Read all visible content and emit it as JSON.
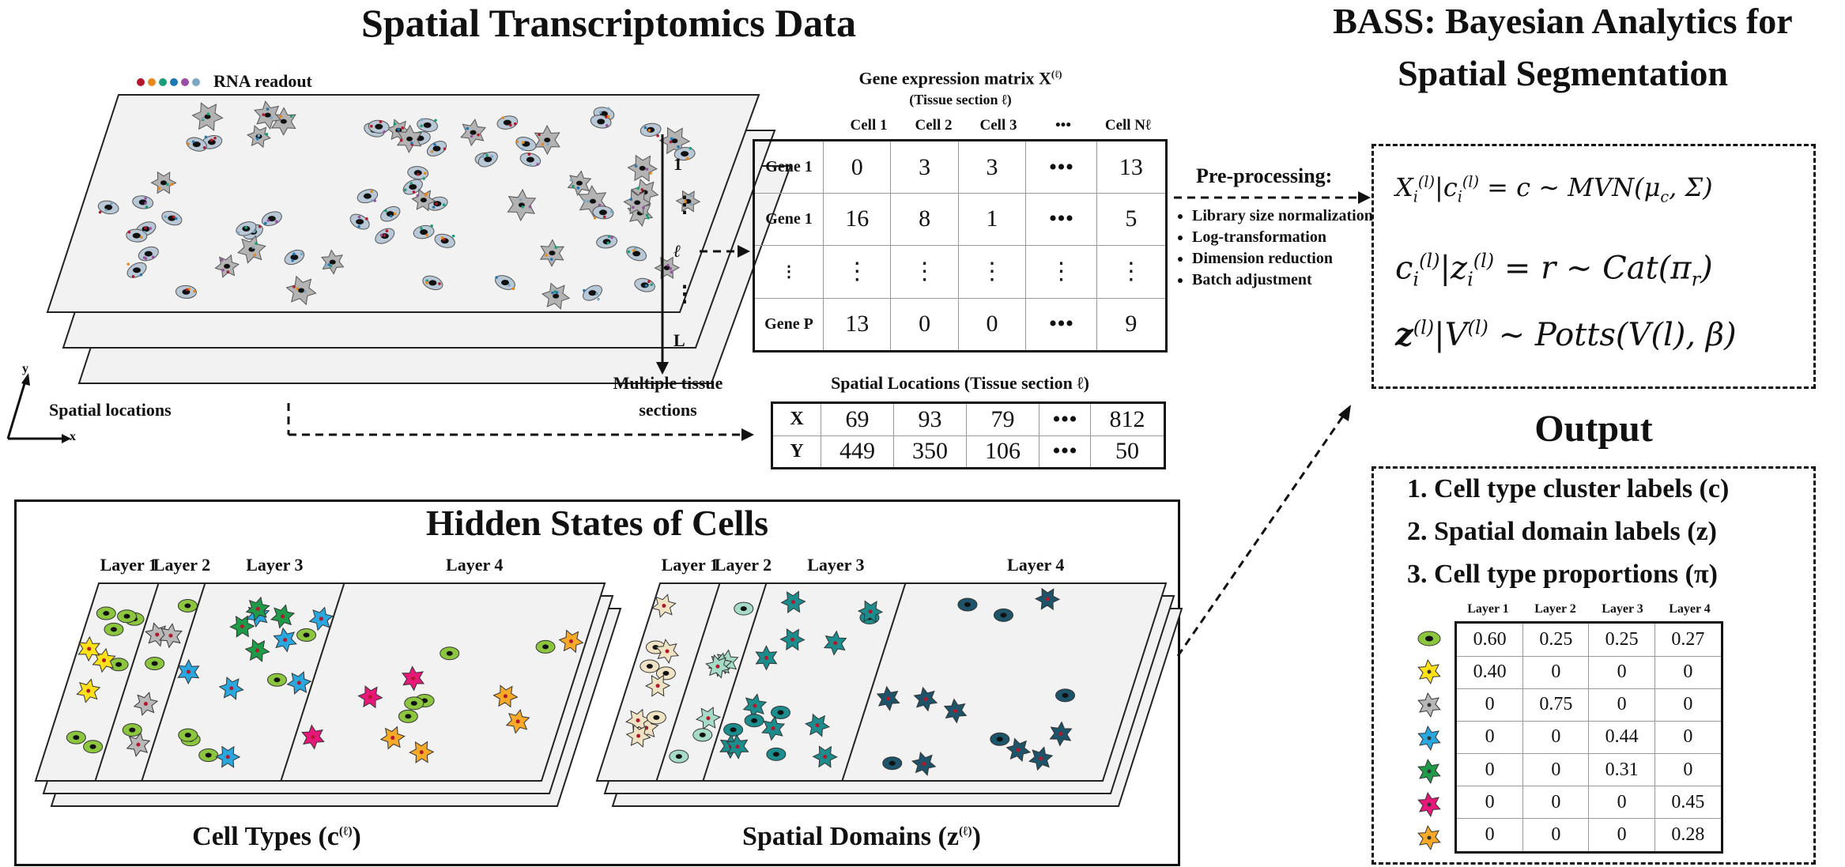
{
  "left_title": "Spatial Transcriptomics Data",
  "right_title_line1": "BASS: Bayesian Analytics for",
  "right_title_line2": "Spatial Segmentation",
  "rna_readout_label": "RNA readout",
  "rna_dot_colors": [
    "#b2182b",
    "#e6891c",
    "#1b9e77",
    "#1f78b4",
    "#984ea3",
    "#7aa6c2"
  ],
  "stack_index_labels": [
    "1",
    "⋮",
    "ℓ",
    "⋮",
    "L"
  ],
  "multiple_sections_label_line1": "Multiple tissue",
  "multiple_sections_label_line2": "sections",
  "axis_y_label": "y",
  "axis_x_label": "x",
  "spatial_locations_label": "Spatial locations",
  "expr_matrix": {
    "title": "Gene expression matrix X",
    "title_sup": "(ℓ)",
    "subtitle": "(Tissue section ℓ)",
    "columns": [
      "Cell 1",
      "Cell 2",
      "Cell 3",
      "•••",
      "Cell Nℓ"
    ],
    "rows": [
      {
        "label": "Gene 1",
        "values": [
          "0",
          "3",
          "3",
          "•••",
          "13"
        ]
      },
      {
        "label": "Gene 1",
        "values": [
          "16",
          "8",
          "1",
          "•••",
          "5"
        ]
      },
      {
        "label": "⋮",
        "values": [
          "⋮",
          "⋮",
          "⋮",
          "⋮",
          "⋮"
        ]
      },
      {
        "label": "Gene P",
        "values": [
          "13",
          "0",
          "0",
          "•••",
          "9"
        ]
      }
    ]
  },
  "spatial_table": {
    "title": "Spatial Locations (Tissue section ℓ)",
    "rows": [
      {
        "label": "X",
        "values": [
          "69",
          "93",
          "79",
          "•••",
          "812"
        ]
      },
      {
        "label": "Y",
        "values": [
          "449",
          "350",
          "106",
          "•••",
          "50"
        ]
      }
    ]
  },
  "preprocessing": {
    "title": "Pre-processing:",
    "items": [
      "Library size normalization",
      "Log-transformation",
      "Dimension reduction",
      "Batch adjustment"
    ]
  },
  "model_equations": [
    {
      "lhs_var": "X",
      "lhs_sub": "i",
      "lhs_sup": "(l)",
      "given_var": "c",
      "given_sub": "i",
      "given_sup": "(l)",
      "rest": " = c ∼ MVN(μ",
      "rest_sub": "c",
      "rest_tail": ", Σ)"
    },
    {
      "lhs_var": "c",
      "lhs_sub": "i",
      "lhs_sup": "(l)",
      "given_var": "z",
      "given_sub": "i",
      "given_sup": "(l)",
      "rest": " = r ∼ Cat(π",
      "rest_sub": "r",
      "rest_tail": ")"
    },
    {
      "lhs_var": "z",
      "lhs_sub": "",
      "lhs_sup": "(l)",
      "given_var": "V",
      "given_sub": "",
      "given_sup": "(l)",
      "rest": " ∼ Potts(V",
      "rest_sub": "",
      "rest_tail": "(l), β)"
    }
  ],
  "hidden_states_title": "Hidden States of Cells",
  "layer_labels": [
    "Layer 1",
    "Layer 2",
    "Layer 3",
    "Layer 4"
  ],
  "cell_types_caption": "Cell Types (c",
  "spatial_domains_caption": "Spatial Domains (z",
  "caption_sup": "(ℓ)",
  "caption_close": ")",
  "output_title": "Output",
  "output_items": [
    "1. Cell type cluster labels (c)",
    "2. Spatial domain labels (z)",
    "3. Cell type proportions (π)"
  ],
  "proportion_table": {
    "columns": [
      "Layer 1",
      "Layer 2",
      "Layer 3",
      "Layer 4"
    ],
    "rows": [
      {
        "cell_icon": "green-ellipse-cell-icon",
        "values": [
          "0.60",
          "0.25",
          "0.25",
          "0.27"
        ]
      },
      {
        "cell_icon": "yellow-star-cell-icon",
        "values": [
          "0.40",
          "0",
          "0",
          "0"
        ]
      },
      {
        "cell_icon": "gray-star-cell-icon",
        "values": [
          "0",
          "0.75",
          "0",
          "0"
        ]
      },
      {
        "cell_icon": "blue-star-cell-icon",
        "values": [
          "0",
          "0",
          "0.44",
          "0"
        ]
      },
      {
        "cell_icon": "dark-green-star-cell-icon",
        "values": [
          "0",
          "0",
          "0.31",
          "0"
        ]
      },
      {
        "cell_icon": "magenta-star-cell-icon",
        "values": [
          "0",
          "0",
          "0",
          "0.45"
        ]
      },
      {
        "cell_icon": "orange-star-cell-icon",
        "values": [
          "0",
          "0",
          "0",
          "0.28"
        ]
      }
    ]
  },
  "colors": {
    "green_ellipse": "#8cc63f",
    "yellow": "#ffe11a",
    "gray": "#b8b8b8",
    "blue": "#29a8e0",
    "dark_green": "#1f9a48",
    "magenta": "#e8177a",
    "orange": "#f7a928",
    "domain1": "#efe3c4",
    "domain2": "#a6dcc7",
    "domain3": "#1c8c8c",
    "domain4": "#1d5469",
    "tissue_fill": "#f2f2f2"
  }
}
